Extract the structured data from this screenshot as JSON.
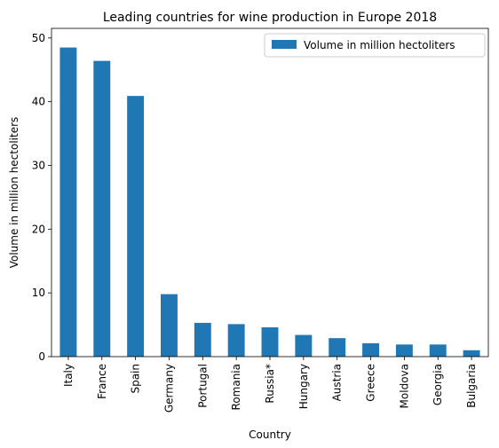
{
  "chart_data": {
    "type": "bar",
    "title": "Leading countries for wine production in Europe 2018",
    "xlabel": "Country",
    "ylabel": "Volume in million hectoliters",
    "categories": [
      "Italy",
      "France",
      "Spain",
      "Germany",
      "Portugal",
      "Romania",
      "Russia*",
      "Hungary",
      "Austria",
      "Greece",
      "Moldova",
      "Georgia",
      "Bulgaria"
    ],
    "series": [
      {
        "name": "Volume in million hectoliters",
        "color": "#1f77b4",
        "values": [
          48.5,
          46.4,
          40.9,
          9.8,
          5.3,
          5.1,
          4.6,
          3.4,
          2.9,
          2.1,
          1.9,
          1.9,
          1.0
        ]
      }
    ],
    "ylim": [
      0,
      51.5
    ],
    "yticks": [
      0,
      10,
      20,
      30,
      40,
      50
    ],
    "grid": false,
    "legend_position": "upper-right"
  }
}
